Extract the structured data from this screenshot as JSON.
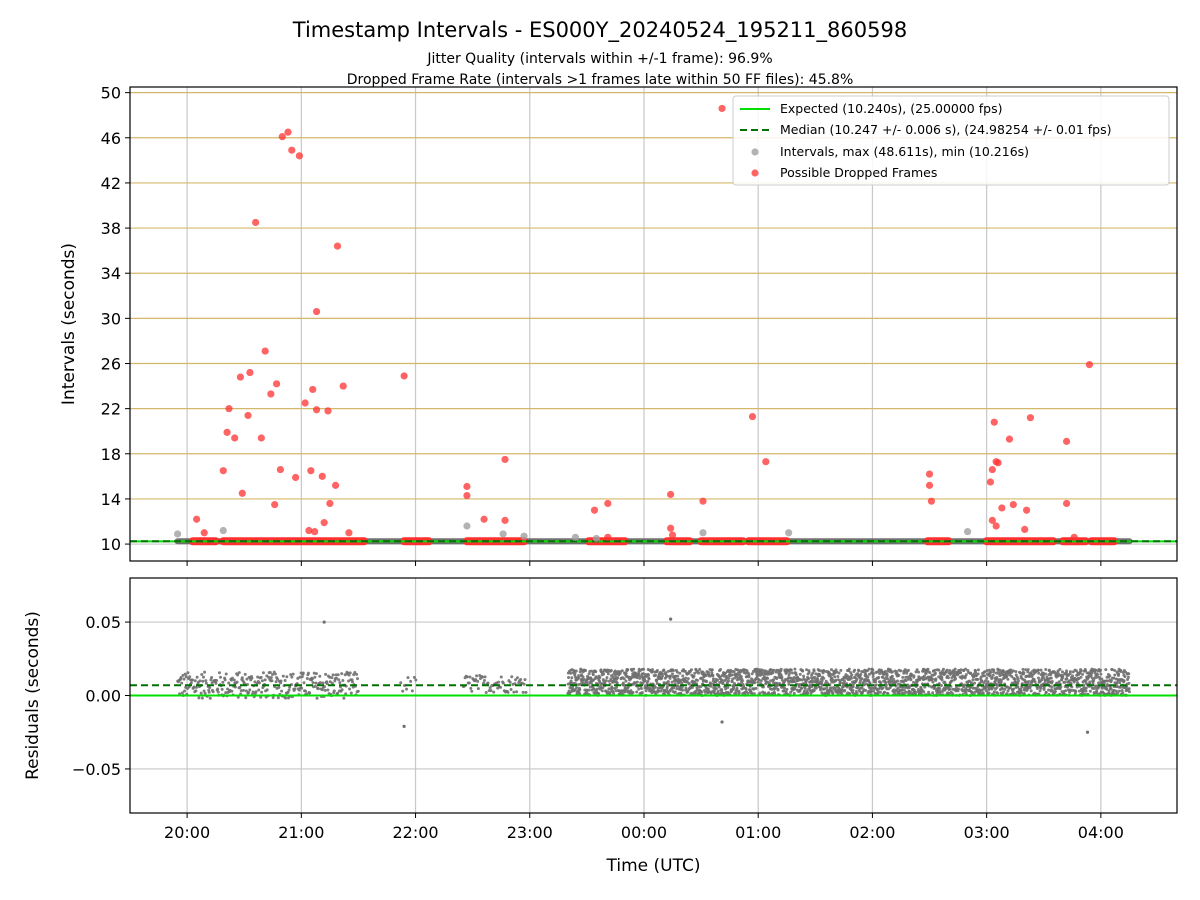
{
  "figure": {
    "title": "Timestamp Intervals - ES000Y_20240524_195211_860598",
    "subtitle_1": "Jitter Quality (intervals within +/-1 frame): 96.9%",
    "subtitle_2": "Dropped Frame Rate (intervals >1 frames late within 50 FF files): 45.8%"
  },
  "colors": {
    "expected": "#00e000",
    "median": "#007000",
    "interval_point": "#a0a0a0",
    "dropped_point": "#ff3030",
    "residual_point": "#707070",
    "grid_y_top": "#d4b86a",
    "grid": "#c8c8c8"
  },
  "chart_data": [
    {
      "type": "scatter",
      "panel": "intervals",
      "ylabel": "Intervals (seconds)",
      "xlabel": "",
      "xlim": [
        "19:30",
        "04:40"
      ],
      "ylim": [
        8.5,
        50.5
      ],
      "y_ticks": [
        10,
        14,
        18,
        22,
        26,
        30,
        34,
        38,
        42,
        46,
        50
      ],
      "grid": true,
      "legend": {
        "placement": "top-right",
        "entries": [
          "Expected (10.240s), (25.00000 fps)",
          "Median (10.247 +/- 0.006 s), (24.98254 +/- 0.01 fps)",
          "Intervals, max (48.611s), min (10.216s)",
          "Possible Dropped Frames"
        ]
      },
      "expected_line": 10.24,
      "median_line": 10.247,
      "baseline_spans": [
        [
          "19:55",
          "04:15"
        ]
      ],
      "dropped_baseline_spans": [
        [
          "20:03",
          "20:15"
        ],
        [
          "20:19",
          "21:33"
        ],
        [
          "21:54",
          "22:07"
        ],
        [
          "22:27",
          "22:57"
        ],
        [
          "23:31",
          "23:50"
        ],
        [
          "00:12",
          "00:24"
        ],
        [
          "00:30",
          "00:52"
        ],
        [
          "00:55",
          "01:15"
        ],
        [
          "02:29",
          "02:40"
        ],
        [
          "03:00",
          "03:35"
        ],
        [
          "03:40",
          "03:52"
        ],
        [
          "03:55",
          "04:07"
        ]
      ],
      "interval_points": [
        [
          "19:55",
          10.9
        ],
        [
          "20:19",
          11.2
        ],
        [
          "22:27",
          11.6
        ],
        [
          "22:46",
          10.9
        ],
        [
          "22:57",
          10.7
        ],
        [
          "23:24",
          10.6
        ],
        [
          "23:35",
          10.5
        ],
        [
          "00:31",
          11.0
        ],
        [
          "01:16",
          11.0
        ],
        [
          "02:50",
          11.1
        ]
      ],
      "dropped_points": [
        [
          "20:05",
          12.2
        ],
        [
          "20:09",
          11.0
        ],
        [
          "20:19",
          16.5
        ],
        [
          "20:21",
          19.9
        ],
        [
          "20:22",
          22.0
        ],
        [
          "20:25",
          19.4
        ],
        [
          "20:28",
          24.8
        ],
        [
          "20:29",
          14.5
        ],
        [
          "20:32",
          21.4
        ],
        [
          "20:33",
          25.2
        ],
        [
          "20:36",
          38.5
        ],
        [
          "20:39",
          19.4
        ],
        [
          "20:41",
          27.1
        ],
        [
          "20:44",
          23.3
        ],
        [
          "20:46",
          13.5
        ],
        [
          "20:47",
          24.2
        ],
        [
          "20:49",
          16.6
        ],
        [
          "20:50",
          46.1
        ],
        [
          "20:53",
          46.5
        ],
        [
          "20:55",
          44.9
        ],
        [
          "20:57",
          15.9
        ],
        [
          "20:59",
          44.4
        ],
        [
          "21:02",
          22.5
        ],
        [
          "21:04",
          11.2
        ],
        [
          "21:05",
          16.5
        ],
        [
          "21:06",
          23.7
        ],
        [
          "21:07",
          11.1
        ],
        [
          "21:08",
          21.9
        ],
        [
          "21:08",
          30.6
        ],
        [
          "21:11",
          16.0
        ],
        [
          "21:12",
          11.9
        ],
        [
          "21:14",
          21.8
        ],
        [
          "21:15",
          13.6
        ],
        [
          "21:18",
          15.2
        ],
        [
          "21:19",
          36.4
        ],
        [
          "21:22",
          24.0
        ],
        [
          "21:25",
          11.0
        ],
        [
          "21:54",
          24.9
        ],
        [
          "22:27",
          15.1
        ],
        [
          "22:27",
          14.3
        ],
        [
          "22:36",
          12.2
        ],
        [
          "22:47",
          12.1
        ],
        [
          "22:47",
          17.5
        ],
        [
          "23:34",
          13.0
        ],
        [
          "23:41",
          13.6
        ],
        [
          "23:41",
          10.6
        ],
        [
          "00:14",
          14.4
        ],
        [
          "00:14",
          11.4
        ],
        [
          "00:15",
          10.8
        ],
        [
          "00:31",
          13.8
        ],
        [
          "00:41",
          48.6
        ],
        [
          "00:57",
          21.3
        ],
        [
          "01:04",
          17.3
        ],
        [
          "02:30",
          16.2
        ],
        [
          "02:30",
          15.2
        ],
        [
          "02:31",
          13.8
        ],
        [
          "03:02",
          15.5
        ],
        [
          "03:03",
          16.6
        ],
        [
          "03:03",
          12.1
        ],
        [
          "03:04",
          20.8
        ],
        [
          "03:05",
          17.3
        ],
        [
          "03:05",
          11.6
        ],
        [
          "03:06",
          17.2
        ],
        [
          "03:08",
          13.2
        ],
        [
          "03:12",
          19.3
        ],
        [
          "03:14",
          13.5
        ],
        [
          "03:20",
          11.3
        ],
        [
          "03:21",
          13.0
        ],
        [
          "03:23",
          21.2
        ],
        [
          "03:42",
          19.1
        ],
        [
          "03:42",
          13.6
        ],
        [
          "03:46",
          10.6
        ],
        [
          "03:54",
          25.9
        ]
      ]
    },
    {
      "type": "scatter",
      "panel": "residuals",
      "xlabel": "Time (UTC)",
      "ylabel": "Residuals (seconds)",
      "xlim": [
        "19:30",
        "04:40"
      ],
      "ylim": [
        -0.08,
        0.08
      ],
      "x_ticks": [
        "20:00",
        "21:00",
        "22:00",
        "23:00",
        "00:00",
        "01:00",
        "02:00",
        "03:00",
        "04:00"
      ],
      "y_ticks": [
        0.05,
        0.0,
        -0.05
      ],
      "y_tick_labels": [
        "0.05",
        "0.00",
        "−0.05"
      ],
      "grid": true,
      "expected_line": 0.0,
      "median_line": 0.007,
      "clusters": [
        {
          "from": "19:55",
          "to": "21:30",
          "y_min": -0.002,
          "y_max": 0.016,
          "spacing_min": 0.3
        },
        {
          "from": "21:52",
          "to": "22:00",
          "y_min": 0.002,
          "y_max": 0.013,
          "spacing_min": 1.0
        },
        {
          "from": "22:25",
          "to": "22:58",
          "y_min": 0.002,
          "y_max": 0.014,
          "spacing_min": 0.5
        },
        {
          "from": "23:20",
          "to": "04:15",
          "y_min": 0.0,
          "y_max": 0.018,
          "spacing_min": 0.12
        }
      ],
      "outliers": [
        [
          "21:12",
          0.05
        ],
        [
          "00:14",
          0.052
        ],
        [
          "21:54",
          -0.021
        ],
        [
          "00:41",
          -0.018
        ],
        [
          "03:53",
          -0.025
        ]
      ]
    }
  ]
}
